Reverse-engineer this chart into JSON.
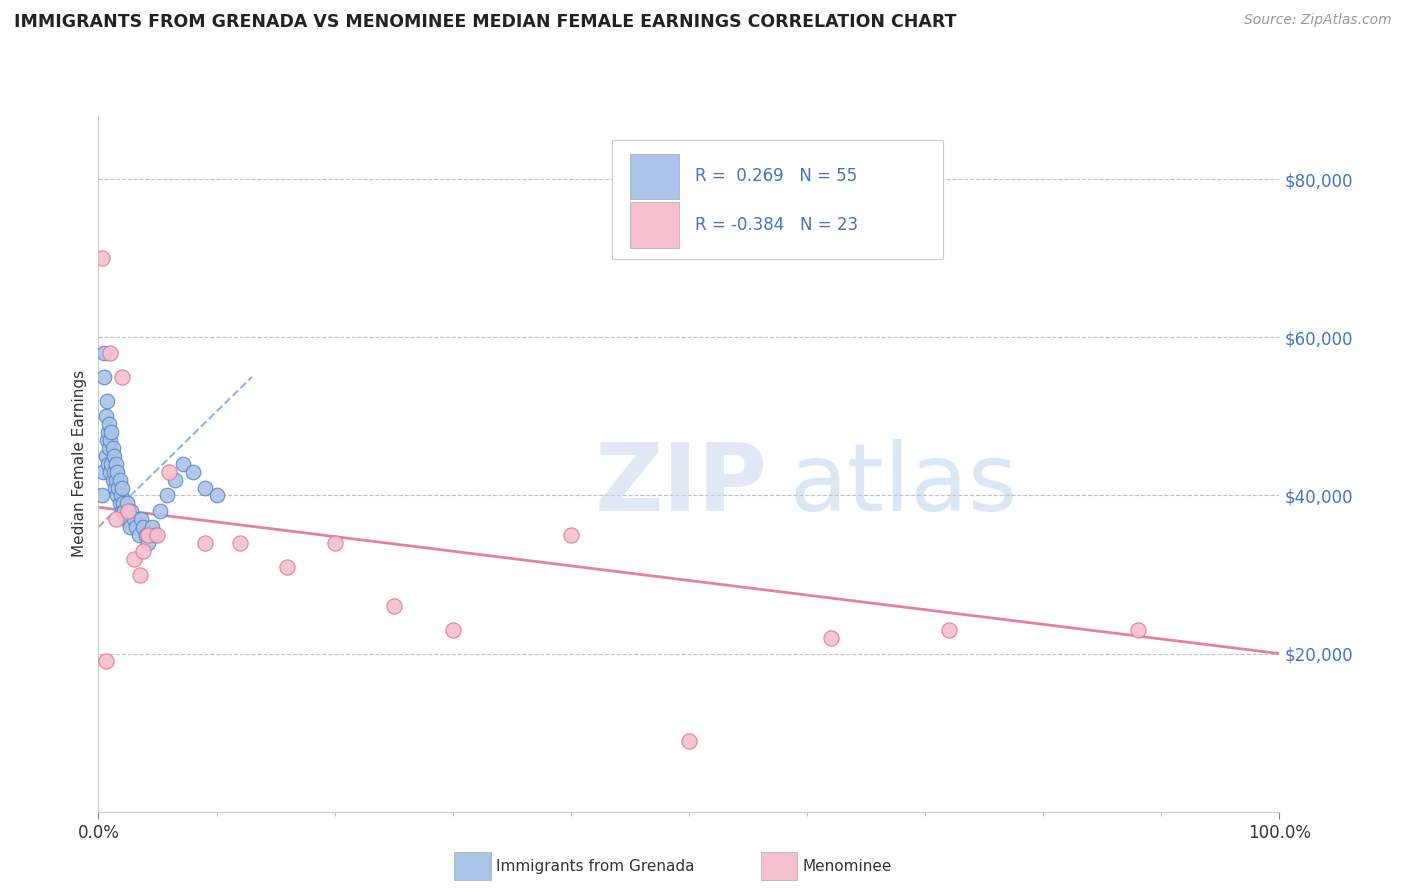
{
  "title": "IMMIGRANTS FROM GRENADA VS MENOMINEE MEDIAN FEMALE EARNINGS CORRELATION CHART",
  "source": "Source: ZipAtlas.com",
  "ylabel": "Median Female Earnings",
  "ytick_labels": [
    "$20,000",
    "$40,000",
    "$60,000",
    "$80,000"
  ],
  "ytick_values": [
    20000,
    40000,
    60000,
    80000
  ],
  "ymin": 0,
  "ymax": 88000,
  "xmin": 0.0,
  "xmax": 1.0,
  "blue_color": "#aac4e8",
  "blue_edge_color": "#5585c8",
  "pink_color": "#f5c0cf",
  "pink_edge_color": "#e07595",
  "pink_line_color": "#e07595",
  "blue_line_color": "#4472c4",
  "blue_dash_color": "#7aaade",
  "legend_text_color": "#4472c4",
  "background_color": "#ffffff",
  "grid_color": "#bbbbbb",
  "blue_scatter_x": [
    0.003,
    0.004,
    0.005,
    0.005,
    0.006,
    0.006,
    0.007,
    0.007,
    0.008,
    0.008,
    0.009,
    0.009,
    0.01,
    0.01,
    0.011,
    0.011,
    0.012,
    0.012,
    0.013,
    0.013,
    0.014,
    0.015,
    0.015,
    0.016,
    0.016,
    0.017,
    0.018,
    0.018,
    0.019,
    0.02,
    0.02,
    0.021,
    0.022,
    0.023,
    0.024,
    0.025,
    0.026,
    0.027,
    0.028,
    0.03,
    0.032,
    0.034,
    0.036,
    0.038,
    0.04,
    0.042,
    0.045,
    0.048,
    0.052,
    0.058,
    0.065,
    0.072,
    0.08,
    0.09,
    0.1
  ],
  "blue_scatter_y": [
    40000,
    43000,
    58000,
    55000,
    45000,
    50000,
    47000,
    52000,
    44000,
    48000,
    46000,
    49000,
    43000,
    47000,
    44000,
    48000,
    42000,
    46000,
    43000,
    45000,
    41000,
    42000,
    44000,
    40000,
    43000,
    41000,
    39000,
    42000,
    40000,
    38000,
    41000,
    39000,
    38000,
    37000,
    39000,
    38000,
    37000,
    36000,
    38000,
    37000,
    36000,
    35000,
    37000,
    36000,
    35000,
    34000,
    36000,
    35000,
    38000,
    40000,
    42000,
    44000,
    43000,
    41000,
    40000
  ],
  "pink_scatter_x": [
    0.003,
    0.006,
    0.01,
    0.015,
    0.02,
    0.025,
    0.03,
    0.035,
    0.038,
    0.042,
    0.05,
    0.06,
    0.09,
    0.12,
    0.16,
    0.2,
    0.25,
    0.3,
    0.4,
    0.5,
    0.62,
    0.72,
    0.88
  ],
  "pink_scatter_y": [
    70000,
    19000,
    58000,
    37000,
    55000,
    38000,
    32000,
    30000,
    33000,
    35000,
    35000,
    43000,
    34000,
    34000,
    31000,
    34000,
    26000,
    23000,
    35000,
    9000,
    22000,
    23000,
    23000
  ],
  "blue_trend_x": [
    0.0,
    0.13
  ],
  "blue_trend_y": [
    36000,
    55000
  ],
  "pink_trend_x": [
    0.0,
    1.0
  ],
  "pink_trend_y": [
    38500,
    20000
  ]
}
